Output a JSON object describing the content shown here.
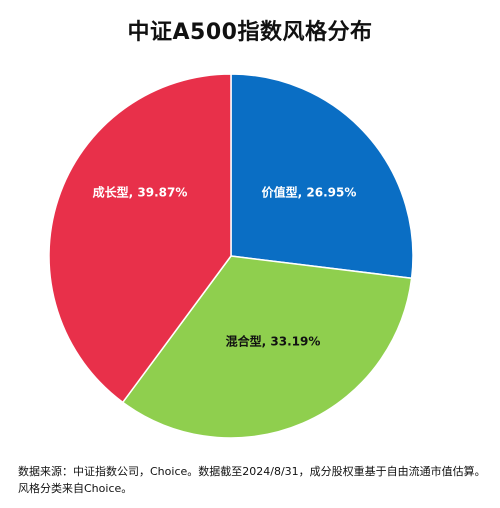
{
  "chart_data": {
    "type": "pie",
    "title": "中证A500指数风格分布",
    "slices": [
      {
        "name": "价值型",
        "value": 26.95,
        "label": "价值型, 26.95%",
        "color": "#0A6EC4"
      },
      {
        "name": "混合型",
        "value": 33.19,
        "label": "混合型, 33.19%",
        "color": "#8FCF4E"
      },
      {
        "name": "成长型",
        "value": 39.87,
        "label": "成长型, 39.87%",
        "color": "#E8304A"
      }
    ],
    "start_angle_deg": 0,
    "direction": "clockwise",
    "legend": "none",
    "data_labels": "inside"
  },
  "footnote": {
    "line1": "数据来源：中证指数公司，Choice。数据截至2024/8/31，成分股权重基于自由流通市值估算。",
    "line2": "风格分类来自Choice。"
  }
}
